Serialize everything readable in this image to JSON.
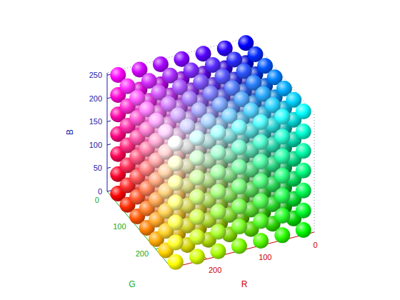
{
  "chart_data": {
    "type": "scatter3d",
    "xlabel": "R",
    "ylabel": "G",
    "zlabel": "B",
    "xlim": [
      -15,
      270
    ],
    "ylim": [
      -15,
      270
    ],
    "zlim": [
      0,
      255
    ],
    "xticks": [
      0,
      100,
      200
    ],
    "yticks": [
      0,
      100,
      200
    ],
    "zticks": [
      0,
      50,
      100,
      150,
      200,
      250
    ],
    "grid": false,
    "points": [
      [
        0,
        0,
        0
      ],
      [
        0,
        0,
        42
      ],
      [
        0,
        0,
        85
      ],
      [
        0,
        0,
        128
      ],
      [
        0,
        0,
        170
      ],
      [
        0,
        0,
        212
      ],
      [
        0,
        0,
        255
      ],
      [
        0,
        42,
        0
      ],
      [
        0,
        42,
        42
      ],
      [
        0,
        42,
        85
      ],
      [
        0,
        42,
        128
      ],
      [
        0,
        42,
        170
      ],
      [
        0,
        42,
        212
      ],
      [
        0,
        42,
        255
      ],
      [
        0,
        85,
        0
      ],
      [
        0,
        85,
        42
      ],
      [
        0,
        85,
        85
      ],
      [
        0,
        85,
        128
      ],
      [
        0,
        85,
        170
      ],
      [
        0,
        85,
        212
      ],
      [
        0,
        85,
        255
      ],
      [
        0,
        128,
        0
      ],
      [
        0,
        128,
        42
      ],
      [
        0,
        128,
        85
      ],
      [
        0,
        128,
        128
      ],
      [
        0,
        128,
        170
      ],
      [
        0,
        128,
        212
      ],
      [
        0,
        128,
        255
      ],
      [
        0,
        170,
        0
      ],
      [
        0,
        170,
        42
      ],
      [
        0,
        170,
        85
      ],
      [
        0,
        170,
        128
      ],
      [
        0,
        170,
        170
      ],
      [
        0,
        170,
        212
      ],
      [
        0,
        170,
        255
      ],
      [
        0,
        212,
        0
      ],
      [
        0,
        212,
        42
      ],
      [
        0,
        212,
        85
      ],
      [
        0,
        212,
        128
      ],
      [
        0,
        212,
        170
      ],
      [
        0,
        212,
        212
      ],
      [
        0,
        212,
        255
      ],
      [
        0,
        255,
        0
      ],
      [
        0,
        255,
        42
      ],
      [
        0,
        255,
        85
      ],
      [
        0,
        255,
        128
      ],
      [
        0,
        255,
        170
      ],
      [
        0,
        255,
        212
      ],
      [
        0,
        255,
        255
      ],
      [
        42,
        0,
        0
      ],
      [
        42,
        0,
        42
      ],
      [
        42,
        0,
        85
      ],
      [
        42,
        0,
        128
      ],
      [
        42,
        0,
        170
      ],
      [
        42,
        0,
        212
      ],
      [
        42,
        0,
        255
      ],
      [
        42,
        42,
        0
      ],
      [
        42,
        42,
        42
      ],
      [
        42,
        42,
        85
      ],
      [
        42,
        42,
        128
      ],
      [
        42,
        42,
        170
      ],
      [
        42,
        42,
        212
      ],
      [
        42,
        42,
        255
      ],
      [
        42,
        85,
        0
      ],
      [
        42,
        85,
        42
      ],
      [
        42,
        85,
        85
      ],
      [
        42,
        85,
        128
      ],
      [
        42,
        85,
        170
      ],
      [
        42,
        85,
        212
      ],
      [
        42,
        85,
        255
      ],
      [
        42,
        128,
        0
      ],
      [
        42,
        128,
        42
      ],
      [
        42,
        128,
        85
      ],
      [
        42,
        128,
        128
      ],
      [
        42,
        128,
        170
      ],
      [
        42,
        128,
        212
      ],
      [
        42,
        128,
        255
      ],
      [
        42,
        170,
        0
      ],
      [
        42,
        170,
        42
      ],
      [
        42,
        170,
        85
      ],
      [
        42,
        170,
        128
      ],
      [
        42,
        170,
        170
      ],
      [
        42,
        170,
        212
      ],
      [
        42,
        170,
        255
      ],
      [
        42,
        212,
        0
      ],
      [
        42,
        212,
        42
      ],
      [
        42,
        212,
        85
      ],
      [
        42,
        212,
        128
      ],
      [
        42,
        212,
        170
      ],
      [
        42,
        212,
        212
      ],
      [
        42,
        212,
        255
      ],
      [
        42,
        255,
        0
      ],
      [
        42,
        255,
        42
      ],
      [
        42,
        255,
        85
      ],
      [
        42,
        255,
        128
      ],
      [
        42,
        255,
        170
      ],
      [
        42,
        255,
        212
      ],
      [
        42,
        255,
        255
      ],
      [
        85,
        0,
        0
      ],
      [
        85,
        0,
        42
      ],
      [
        85,
        0,
        85
      ],
      [
        85,
        0,
        128
      ],
      [
        85,
        0,
        170
      ],
      [
        85,
        0,
        212
      ],
      [
        85,
        0,
        255
      ],
      [
        85,
        42,
        0
      ],
      [
        85,
        42,
        42
      ],
      [
        85,
        42,
        85
      ],
      [
        85,
        42,
        128
      ],
      [
        85,
        42,
        170
      ],
      [
        85,
        42,
        212
      ],
      [
        85,
        42,
        255
      ],
      [
        85,
        85,
        0
      ],
      [
        85,
        85,
        42
      ],
      [
        85,
        85,
        85
      ],
      [
        85,
        85,
        128
      ],
      [
        85,
        85,
        170
      ],
      [
        85,
        85,
        212
      ],
      [
        85,
        85,
        255
      ],
      [
        85,
        128,
        0
      ],
      [
        85,
        128,
        42
      ],
      [
        85,
        128,
        85
      ],
      [
        85,
        128,
        128
      ],
      [
        85,
        128,
        170
      ],
      [
        85,
        128,
        212
      ],
      [
        85,
        128,
        255
      ],
      [
        85,
        170,
        0
      ],
      [
        85,
        170,
        42
      ],
      [
        85,
        170,
        85
      ],
      [
        85,
        170,
        128
      ],
      [
        85,
        170,
        170
      ],
      [
        85,
        170,
        212
      ],
      [
        85,
        170,
        255
      ],
      [
        85,
        212,
        0
      ],
      [
        85,
        212,
        42
      ],
      [
        85,
        212,
        85
      ],
      [
        85,
        212,
        128
      ],
      [
        85,
        212,
        170
      ],
      [
        85,
        212,
        212
      ],
      [
        85,
        212,
        255
      ],
      [
        85,
        255,
        0
      ],
      [
        85,
        255,
        42
      ],
      [
        85,
        255,
        85
      ],
      [
        85,
        255,
        128
      ],
      [
        85,
        255,
        170
      ],
      [
        85,
        255,
        212
      ],
      [
        85,
        255,
        255
      ],
      [
        128,
        0,
        0
      ],
      [
        128,
        0,
        42
      ],
      [
        128,
        0,
        85
      ],
      [
        128,
        0,
        128
      ],
      [
        128,
        0,
        170
      ],
      [
        128,
        0,
        212
      ],
      [
        128,
        0,
        255
      ],
      [
        128,
        42,
        0
      ],
      [
        128,
        42,
        42
      ],
      [
        128,
        42,
        85
      ],
      [
        128,
        42,
        128
      ],
      [
        128,
        42,
        170
      ],
      [
        128,
        42,
        212
      ],
      [
        128,
        42,
        255
      ],
      [
        128,
        85,
        0
      ],
      [
        128,
        85,
        42
      ],
      [
        128,
        85,
        85
      ],
      [
        128,
        85,
        128
      ],
      [
        128,
        85,
        170
      ],
      [
        128,
        85,
        212
      ],
      [
        128,
        85,
        255
      ],
      [
        128,
        128,
        0
      ],
      [
        128,
        128,
        42
      ],
      [
        128,
        128,
        85
      ],
      [
        128,
        128,
        128
      ],
      [
        128,
        128,
        170
      ],
      [
        128,
        128,
        212
      ],
      [
        128,
        128,
        255
      ],
      [
        128,
        170,
        0
      ],
      [
        128,
        170,
        42
      ],
      [
        128,
        170,
        85
      ],
      [
        128,
        170,
        128
      ],
      [
        128,
        170,
        170
      ],
      [
        128,
        170,
        212
      ],
      [
        128,
        170,
        255
      ],
      [
        128,
        212,
        0
      ],
      [
        128,
        212,
        42
      ],
      [
        128,
        212,
        85
      ],
      [
        128,
        212,
        128
      ],
      [
        128,
        212,
        170
      ],
      [
        128,
        212,
        212
      ],
      [
        128,
        212,
        255
      ],
      [
        128,
        255,
        0
      ],
      [
        128,
        255,
        42
      ],
      [
        128,
        255,
        85
      ],
      [
        128,
        255,
        128
      ],
      [
        128,
        255,
        170
      ],
      [
        128,
        255,
        212
      ],
      [
        128,
        255,
        255
      ],
      [
        170,
        0,
        0
      ],
      [
        170,
        0,
        42
      ],
      [
        170,
        0,
        85
      ],
      [
        170,
        0,
        128
      ],
      [
        170,
        0,
        170
      ],
      [
        170,
        0,
        212
      ],
      [
        170,
        0,
        255
      ],
      [
        170,
        42,
        0
      ],
      [
        170,
        42,
        42
      ],
      [
        170,
        42,
        85
      ],
      [
        170,
        42,
        128
      ],
      [
        170,
        42,
        170
      ],
      [
        170,
        42,
        212
      ],
      [
        170,
        42,
        255
      ],
      [
        170,
        85,
        0
      ],
      [
        170,
        85,
        42
      ],
      [
        170,
        85,
        85
      ],
      [
        170,
        85,
        128
      ],
      [
        170,
        85,
        170
      ],
      [
        170,
        85,
        212
      ],
      [
        170,
        85,
        255
      ],
      [
        170,
        128,
        0
      ],
      [
        170,
        128,
        42
      ],
      [
        170,
        128,
        85
      ],
      [
        170,
        128,
        128
      ],
      [
        170,
        128,
        170
      ],
      [
        170,
        128,
        212
      ],
      [
        170,
        128,
        255
      ],
      [
        170,
        170,
        0
      ],
      [
        170,
        170,
        42
      ],
      [
        170,
        170,
        85
      ],
      [
        170,
        170,
        128
      ],
      [
        170,
        170,
        170
      ],
      [
        170,
        170,
        212
      ],
      [
        170,
        170,
        255
      ],
      [
        170,
        212,
        0
      ],
      [
        170,
        212,
        42
      ],
      [
        170,
        212,
        85
      ],
      [
        170,
        212,
        128
      ],
      [
        170,
        212,
        170
      ],
      [
        170,
        212,
        212
      ],
      [
        170,
        212,
        255
      ],
      [
        170,
        255,
        0
      ],
      [
        170,
        255,
        42
      ],
      [
        170,
        255,
        85
      ],
      [
        170,
        255,
        128
      ],
      [
        170,
        255,
        170
      ],
      [
        170,
        255,
        212
      ],
      [
        170,
        255,
        255
      ],
      [
        212,
        0,
        0
      ],
      [
        212,
        0,
        42
      ],
      [
        212,
        0,
        85
      ],
      [
        212,
        0,
        128
      ],
      [
        212,
        0,
        170
      ],
      [
        212,
        0,
        212
      ],
      [
        212,
        0,
        255
      ],
      [
        212,
        42,
        0
      ],
      [
        212,
        42,
        42
      ],
      [
        212,
        42,
        85
      ],
      [
        212,
        42,
        128
      ],
      [
        212,
        42,
        170
      ],
      [
        212,
        42,
        212
      ],
      [
        212,
        42,
        255
      ],
      [
        212,
        85,
        0
      ],
      [
        212,
        85,
        42
      ],
      [
        212,
        85,
        85
      ],
      [
        212,
        85,
        128
      ],
      [
        212,
        85,
        170
      ],
      [
        212,
        85,
        212
      ],
      [
        212,
        85,
        255
      ],
      [
        212,
        128,
        0
      ],
      [
        212,
        128,
        42
      ],
      [
        212,
        128,
        85
      ],
      [
        212,
        128,
        128
      ],
      [
        212,
        128,
        170
      ],
      [
        212,
        128,
        212
      ],
      [
        212,
        128,
        255
      ],
      [
        212,
        170,
        0
      ],
      [
        212,
        170,
        42
      ],
      [
        212,
        170,
        85
      ],
      [
        212,
        170,
        128
      ],
      [
        212,
        170,
        170
      ],
      [
        212,
        170,
        212
      ],
      [
        212,
        170,
        255
      ],
      [
        212,
        212,
        0
      ],
      [
        212,
        212,
        42
      ],
      [
        212,
        212,
        85
      ],
      [
        212,
        212,
        128
      ],
      [
        212,
        212,
        170
      ],
      [
        212,
        212,
        212
      ],
      [
        212,
        212,
        255
      ],
      [
        212,
        255,
        0
      ],
      [
        212,
        255,
        42
      ],
      [
        212,
        255,
        85
      ],
      [
        212,
        255,
        128
      ],
      [
        212,
        255,
        170
      ],
      [
        212,
        255,
        212
      ],
      [
        212,
        255,
        255
      ],
      [
        255,
        0,
        0
      ],
      [
        255,
        0,
        42
      ],
      [
        255,
        0,
        85
      ],
      [
        255,
        0,
        128
      ],
      [
        255,
        0,
        170
      ],
      [
        255,
        0,
        212
      ],
      [
        255,
        0,
        255
      ],
      [
        255,
        42,
        0
      ],
      [
        255,
        42,
        42
      ],
      [
        255,
        42,
        85
      ],
      [
        255,
        42,
        128
      ],
      [
        255,
        42,
        170
      ],
      [
        255,
        42,
        212
      ],
      [
        255,
        42,
        255
      ],
      [
        255,
        85,
        0
      ],
      [
        255,
        85,
        42
      ],
      [
        255,
        85,
        85
      ],
      [
        255,
        85,
        128
      ],
      [
        255,
        85,
        170
      ],
      [
        255,
        85,
        212
      ],
      [
        255,
        85,
        255
      ],
      [
        255,
        128,
        0
      ],
      [
        255,
        128,
        42
      ],
      [
        255,
        128,
        85
      ],
      [
        255,
        128,
        128
      ],
      [
        255,
        128,
        170
      ],
      [
        255,
        128,
        212
      ],
      [
        255,
        128,
        255
      ],
      [
        255,
        170,
        0
      ],
      [
        255,
        170,
        42
      ],
      [
        255,
        170,
        85
      ],
      [
        255,
        170,
        128
      ],
      [
        255,
        170,
        170
      ],
      [
        255,
        170,
        212
      ],
      [
        255,
        170,
        255
      ],
      [
        255,
        212,
        0
      ],
      [
        255,
        212,
        42
      ],
      [
        255,
        212,
        85
      ],
      [
        255,
        212,
        128
      ],
      [
        255,
        212,
        170
      ],
      [
        255,
        212,
        212
      ],
      [
        255,
        212,
        255
      ],
      [
        255,
        255,
        0
      ],
      [
        255,
        255,
        42
      ],
      [
        255,
        255,
        85
      ],
      [
        255,
        255,
        128
      ],
      [
        255,
        255,
        170
      ],
      [
        255,
        255,
        212
      ],
      [
        255,
        255,
        255
      ]
    ]
  }
}
